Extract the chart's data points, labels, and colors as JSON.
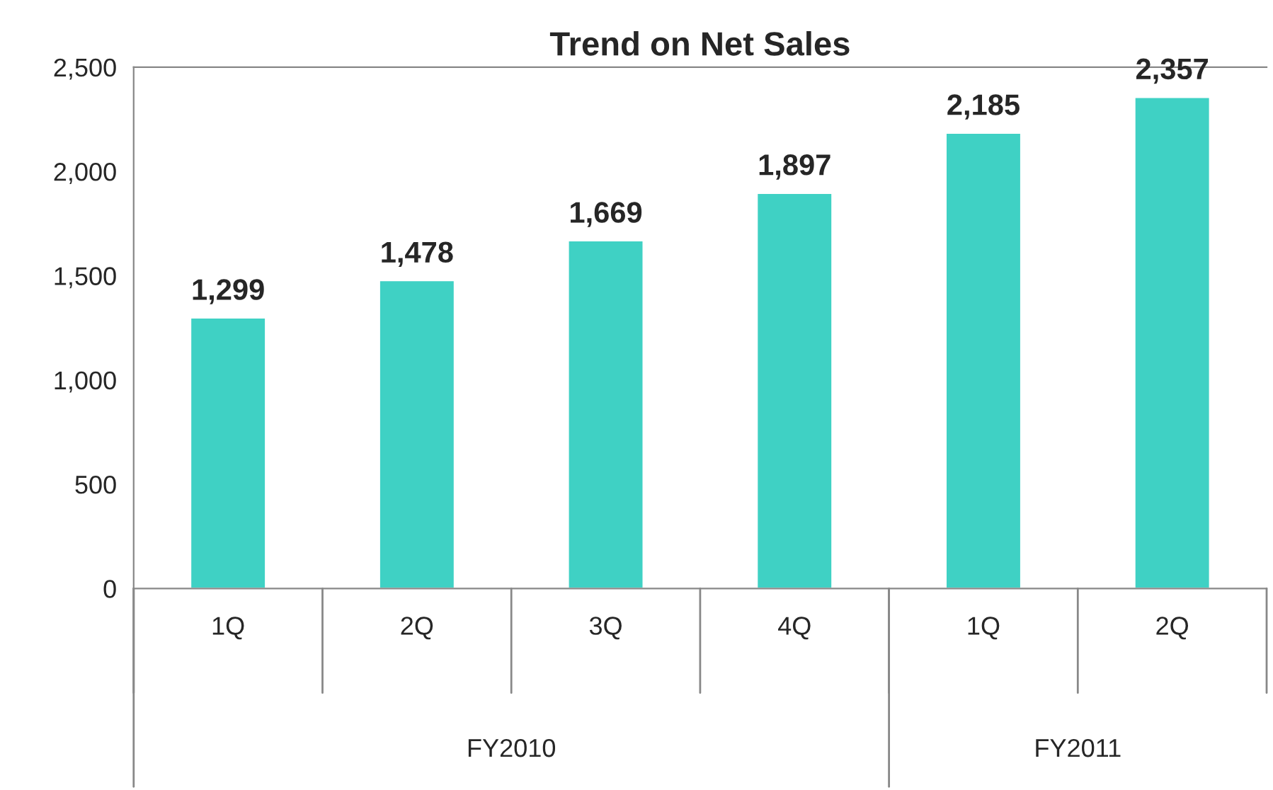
{
  "chart_data": {
    "type": "bar",
    "title": "Trend on Net Sales",
    "categories": [
      "1Q",
      "2Q",
      "3Q",
      "4Q",
      "1Q",
      "2Q"
    ],
    "values": [
      1299,
      1478,
      1669,
      1897,
      2185,
      2357
    ],
    "color": "#3fd1c4",
    "ylim": [
      0,
      2500
    ],
    "yticks": [
      {
        "value": 0,
        "label": "0"
      },
      {
        "value": 500,
        "label": "500"
      },
      {
        "value": 1000,
        "label": "1,000"
      },
      {
        "value": 1500,
        "label": "1,500"
      },
      {
        "value": 2000,
        "label": "2,000"
      },
      {
        "value": 2500,
        "label": "2,500"
      }
    ],
    "value_labels": [
      "1,299",
      "1,478",
      "1,669",
      "1,897",
      "2,185",
      "2,357"
    ],
    "annotations": [
      "FY2010",
      "FY2011"
    ],
    "grid": false,
    "legend": false
  }
}
